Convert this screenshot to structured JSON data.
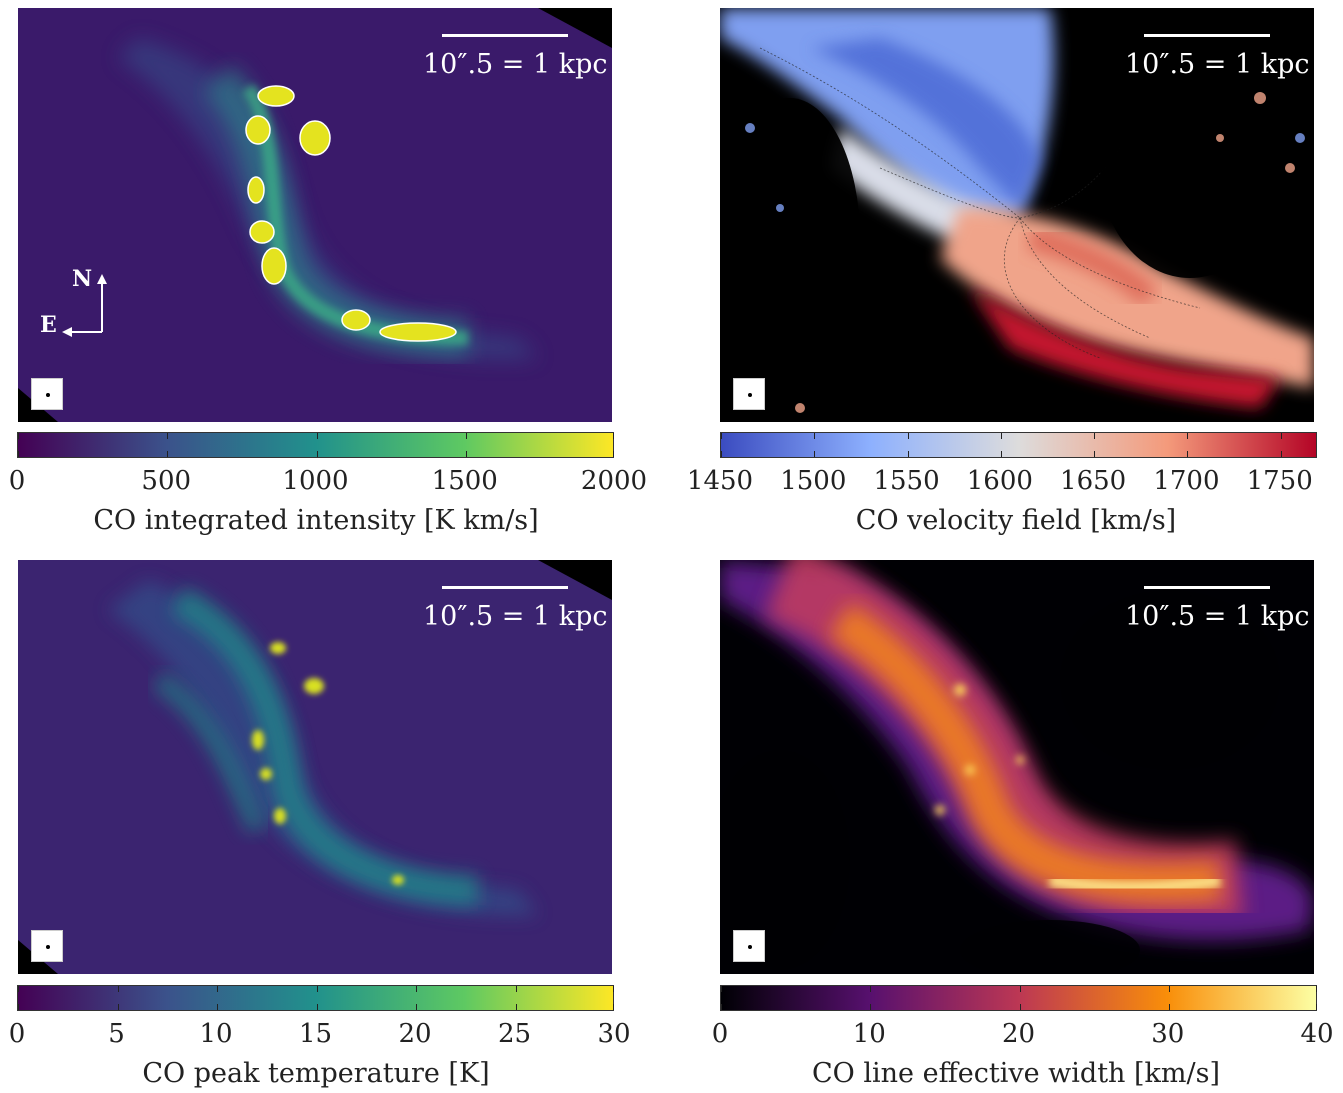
{
  "panels": [
    {
      "id": "integrated",
      "scalebar": "10″.5 = 1 kpc",
      "colorbar_label": "CO integrated intensity [K km/s]",
      "ticks": [
        "0",
        "500",
        "1000",
        "1500",
        "2000"
      ],
      "tick_values": [
        0,
        500,
        1000,
        1500,
        2000
      ],
      "range": [
        0,
        2000
      ],
      "cmap": [
        "#440154",
        "#3b528b",
        "#21918c",
        "#5ec962",
        "#fde725"
      ],
      "compass": {
        "north": "N",
        "east": "E"
      }
    },
    {
      "id": "velocity",
      "scalebar": "10″.5 = 1 kpc",
      "colorbar_label": "CO velocity field [km/s]",
      "ticks": [
        "1450",
        "1500",
        "1550",
        "1600",
        "1650",
        "1700",
        "1750"
      ],
      "tick_values": [
        1450,
        1500,
        1550,
        1600,
        1650,
        1700,
        1750
      ],
      "range": [
        1450,
        1770
      ],
      "cmap": [
        "#3b4cc0",
        "#8db0fe",
        "#dddcdc",
        "#f49a7b",
        "#b40426"
      ]
    },
    {
      "id": "peak",
      "scalebar": "10″.5 = 1 kpc",
      "colorbar_label": "CO peak temperature [K]",
      "ticks": [
        "0",
        "5",
        "10",
        "15",
        "20",
        "25",
        "30"
      ],
      "tick_values": [
        0,
        5,
        10,
        15,
        20,
        25,
        30
      ],
      "range": [
        0,
        30
      ],
      "cmap": [
        "#440154",
        "#3b528b",
        "#21918c",
        "#5ec962",
        "#fde725"
      ]
    },
    {
      "id": "width",
      "scalebar": "10″.5 = 1 kpc",
      "colorbar_label": "CO line effective width [km/s]",
      "ticks": [
        "0",
        "10",
        "20",
        "30",
        "40"
      ],
      "tick_values": [
        0,
        10,
        20,
        30,
        40
      ],
      "range": [
        0,
        40
      ],
      "cmap": [
        "#000004",
        "#57106e",
        "#bc3754",
        "#f98e09",
        "#fcffa4"
      ]
    }
  ]
}
